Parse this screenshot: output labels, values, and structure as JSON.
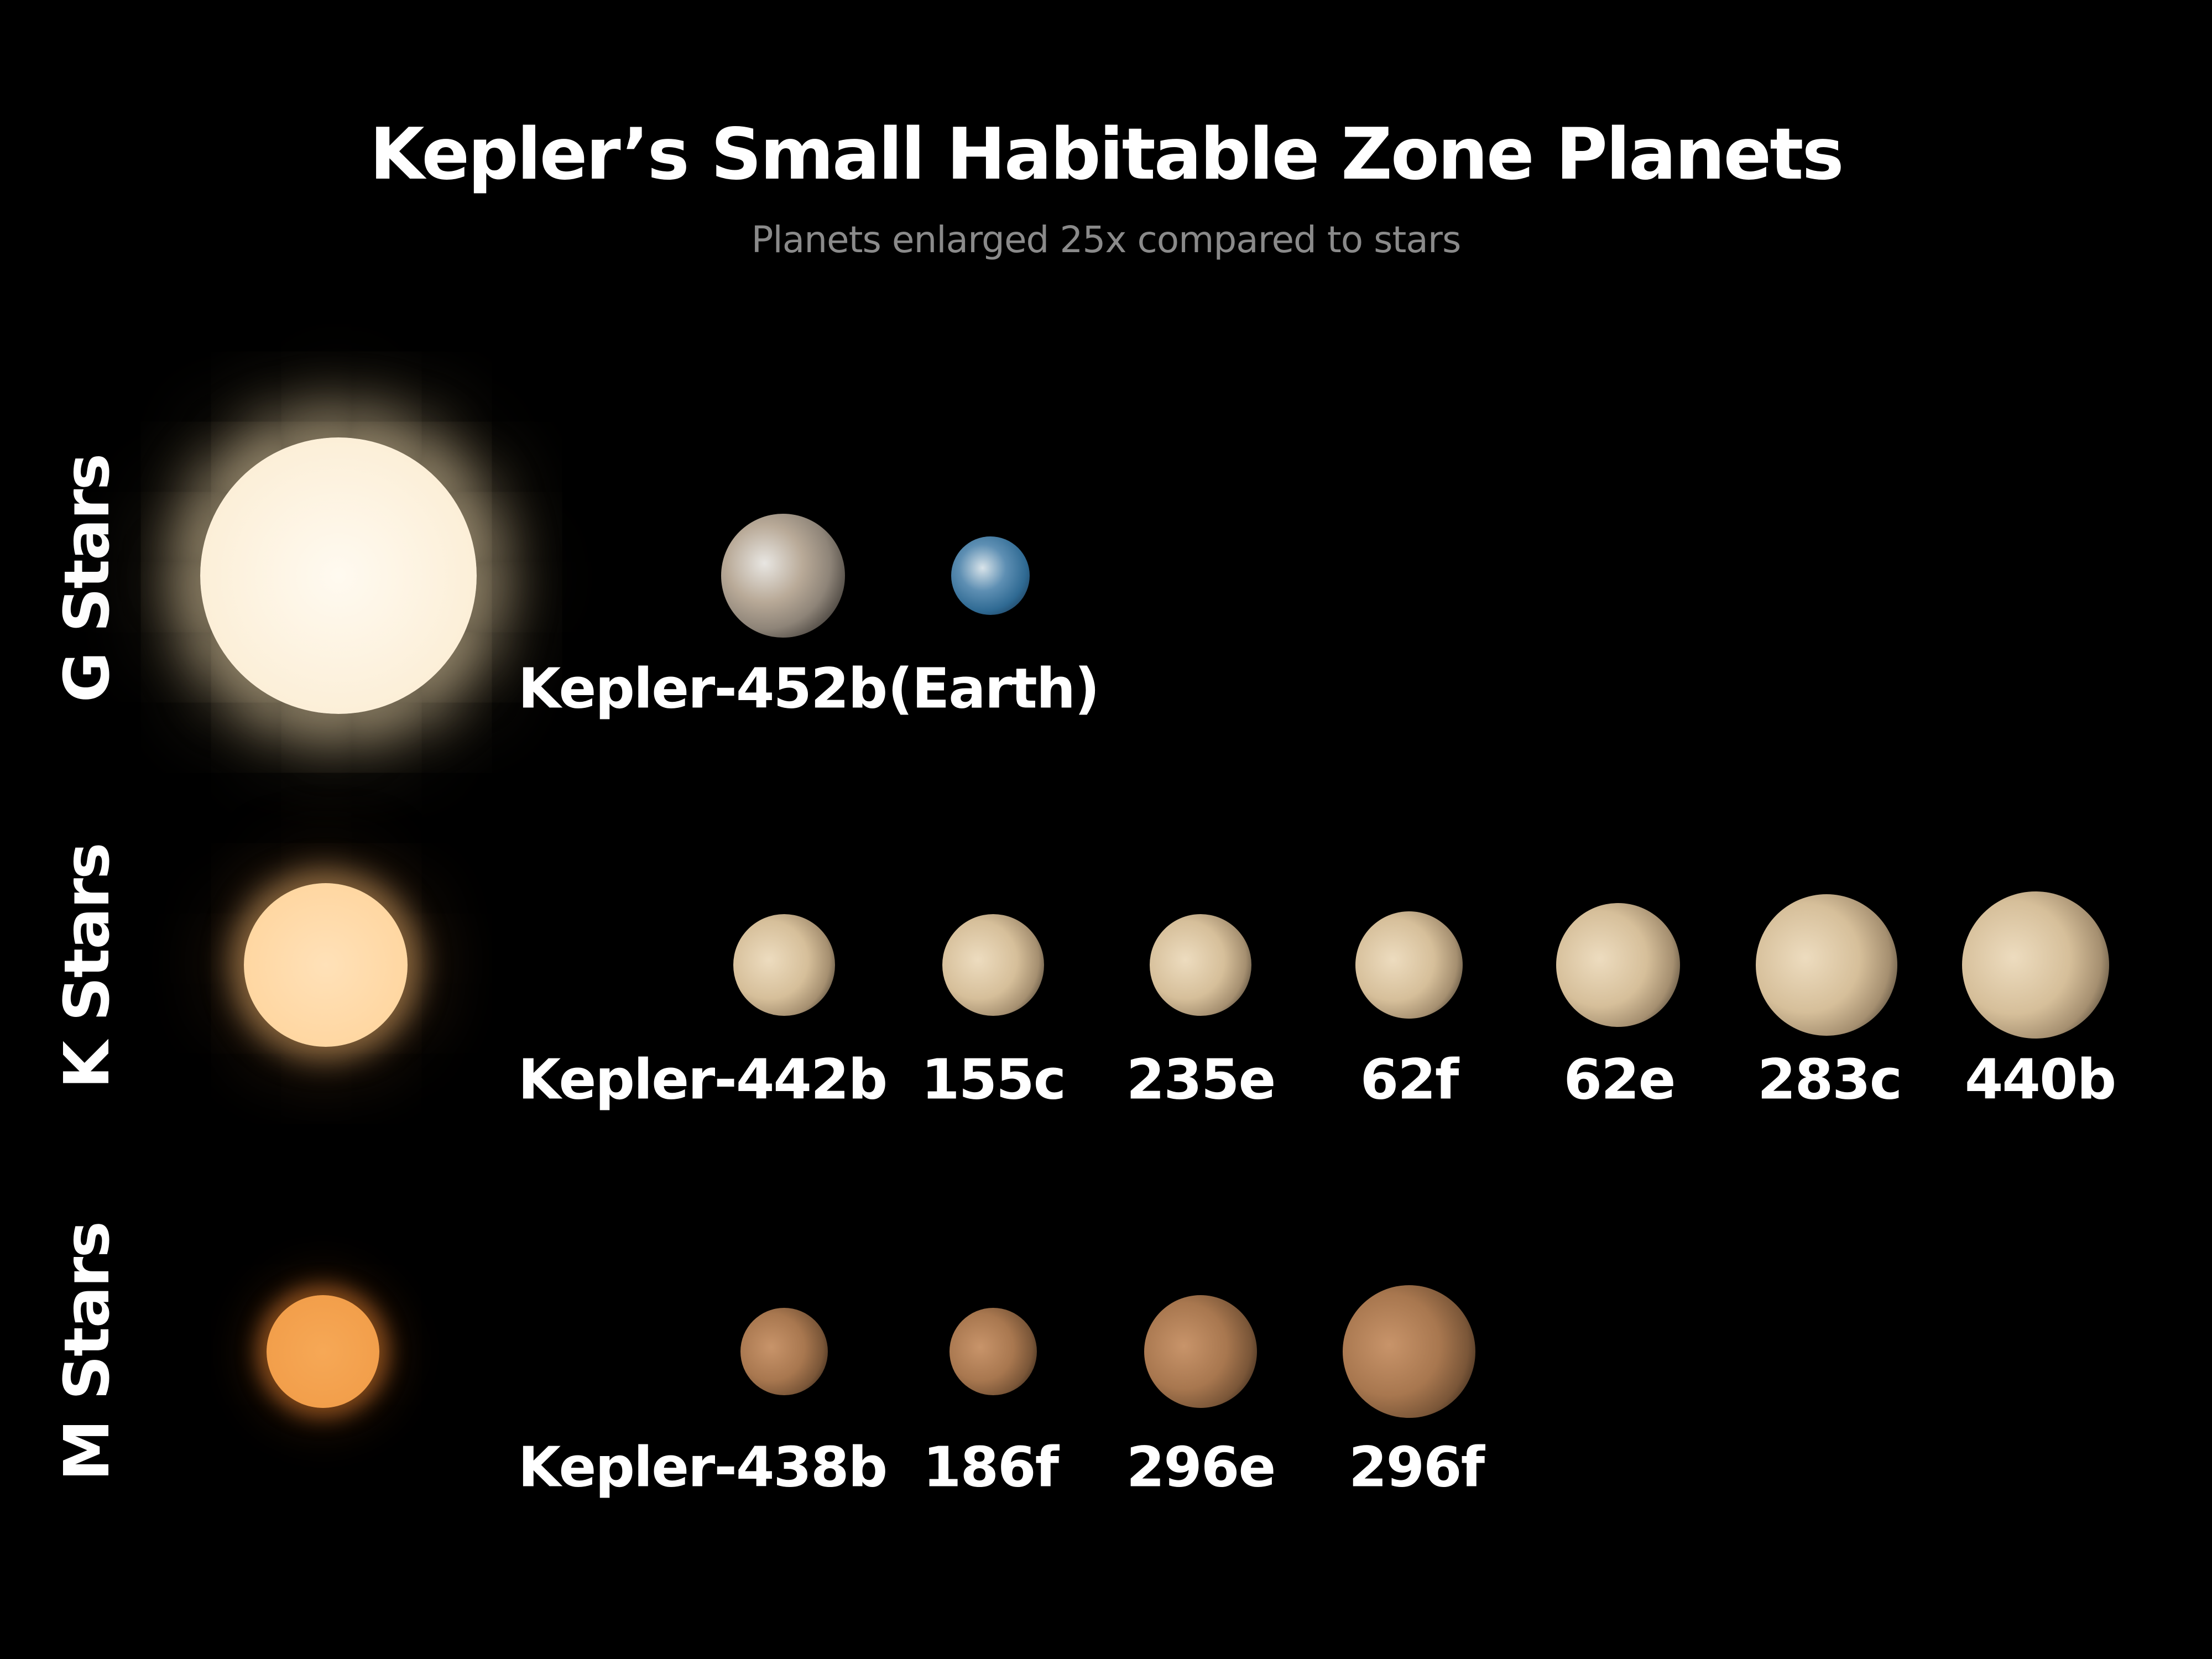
{
  "title": "Kepler’s Small Habitable Zone Planets",
  "subtitle": "Planets enlarged 25x compared to stars",
  "rows": [
    {
      "label": "G Stars",
      "star_color": "#fff6e6",
      "planets": [
        "Kepler-452b",
        "(Earth)"
      ]
    },
    {
      "label": "K Stars",
      "star_color": "#ffd9a8",
      "planets": [
        "Kepler-442b",
        "155c",
        "235e",
        "62f",
        "62e",
        "283c",
        "440b"
      ]
    },
    {
      "label": "M Stars",
      "star_color": "#f2a14e",
      "planets": [
        "Kepler-438b",
        "186f",
        "296e",
        "296f"
      ]
    }
  ]
}
